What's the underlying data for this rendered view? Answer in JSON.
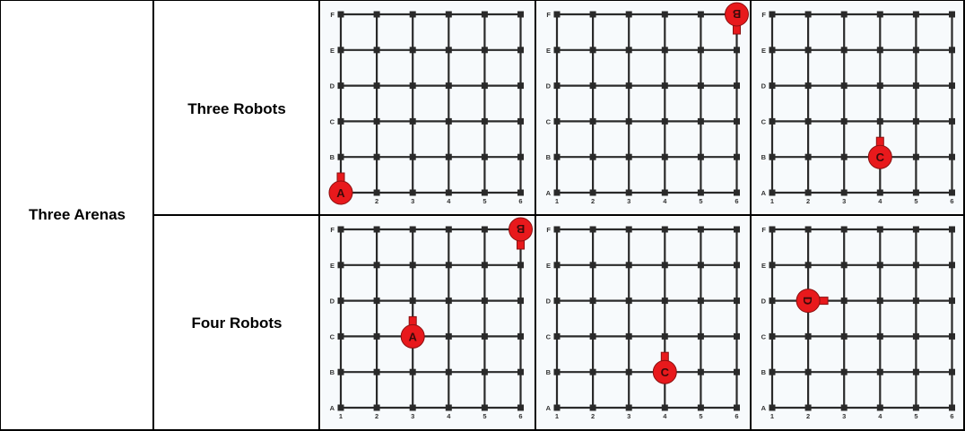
{
  "table": {
    "arenas_label": "Three Arenas",
    "rows": [
      {
        "label": "Three Robots"
      },
      {
        "label": "Four Robots"
      }
    ]
  },
  "grid": {
    "row_labels": [
      "A",
      "B",
      "C",
      "D",
      "E",
      "F"
    ],
    "col_labels": [
      "1",
      "2",
      "3",
      "4",
      "5",
      "6"
    ]
  },
  "colors": {
    "robot_fill": "#e8191c",
    "robot_stroke": "#8a1010",
    "grid_line": "#2a2a2a",
    "grid_bg": "#f7fafc",
    "robot_text": "#3a0a0a"
  },
  "arenas": [
    {
      "robots": [
        {
          "id": "A",
          "col": 1,
          "row": 1,
          "facing": "up"
        }
      ]
    },
    {
      "robots": [
        {
          "id": "B",
          "col": 6,
          "row": 6,
          "facing": "down"
        }
      ]
    },
    {
      "robots": [
        {
          "id": "C",
          "col": 4,
          "row": 2,
          "facing": "up"
        }
      ]
    },
    {
      "robots": [
        {
          "id": "A",
          "col": 3,
          "row": 3,
          "facing": "up"
        },
        {
          "id": "B",
          "col": 6,
          "row": 6,
          "facing": "down"
        }
      ]
    },
    {
      "robots": [
        {
          "id": "C",
          "col": 4,
          "row": 2,
          "facing": "up"
        }
      ]
    },
    {
      "robots": [
        {
          "id": "D",
          "col": 2,
          "row": 4,
          "facing": "right"
        }
      ]
    }
  ]
}
